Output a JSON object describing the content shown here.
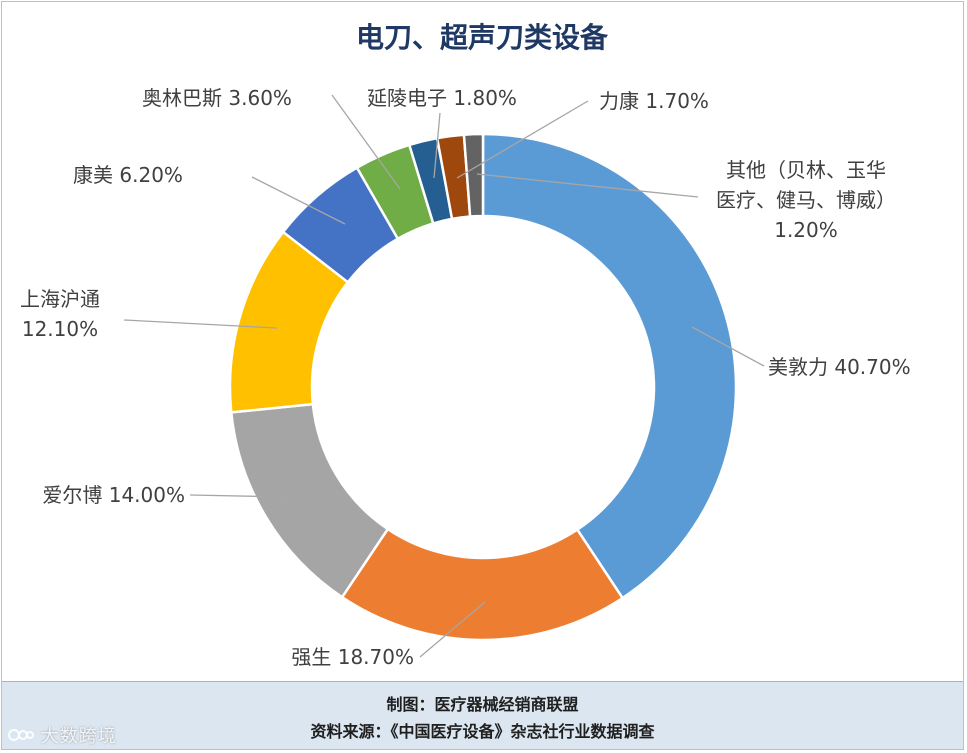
{
  "chart_data": {
    "type": "pie",
    "donut": true,
    "title": "电刀、超声刀类设备",
    "slices": [
      {
        "name": "美敦力",
        "value": 40.7,
        "label": "美敦力 40.70%",
        "color": "#5b9bd5"
      },
      {
        "name": "强生",
        "value": 18.7,
        "label": "强生 18.70%",
        "color": "#ed7d31"
      },
      {
        "name": "爱尔博",
        "value": 14.0,
        "label": "爱尔博 14.00%",
        "color": "#a5a5a5"
      },
      {
        "name": "上海沪通",
        "value": 12.1,
        "label": "上海沪通\n12.10%",
        "color": "#ffc000"
      },
      {
        "name": "康美",
        "value": 6.2,
        "label": "康美 6.20%",
        "color": "#4472c4"
      },
      {
        "name": "奥林巴斯",
        "value": 3.6,
        "label": "奥林巴斯 3.60%",
        "color": "#70ad47"
      },
      {
        "name": "延陵电子",
        "value": 1.8,
        "label": "延陵电子 1.80%",
        "color": "#255e91"
      },
      {
        "name": "力康",
        "value": 1.7,
        "label": "力康 1.70%",
        "color": "#9e480e"
      },
      {
        "name": "其他（贝林、玉华医疗、健马、博威）",
        "value": 1.2,
        "label": "其他（贝林、玉华\n医疗、健马、博威）\n1.20%",
        "color": "#636363"
      }
    ]
  },
  "footer": {
    "line1": "制图：医疗器械经销商联盟",
    "line2": "资料来源：《中国医疗设备》杂志社行业数据调查"
  },
  "watermark": {
    "text": "大数跨境"
  }
}
